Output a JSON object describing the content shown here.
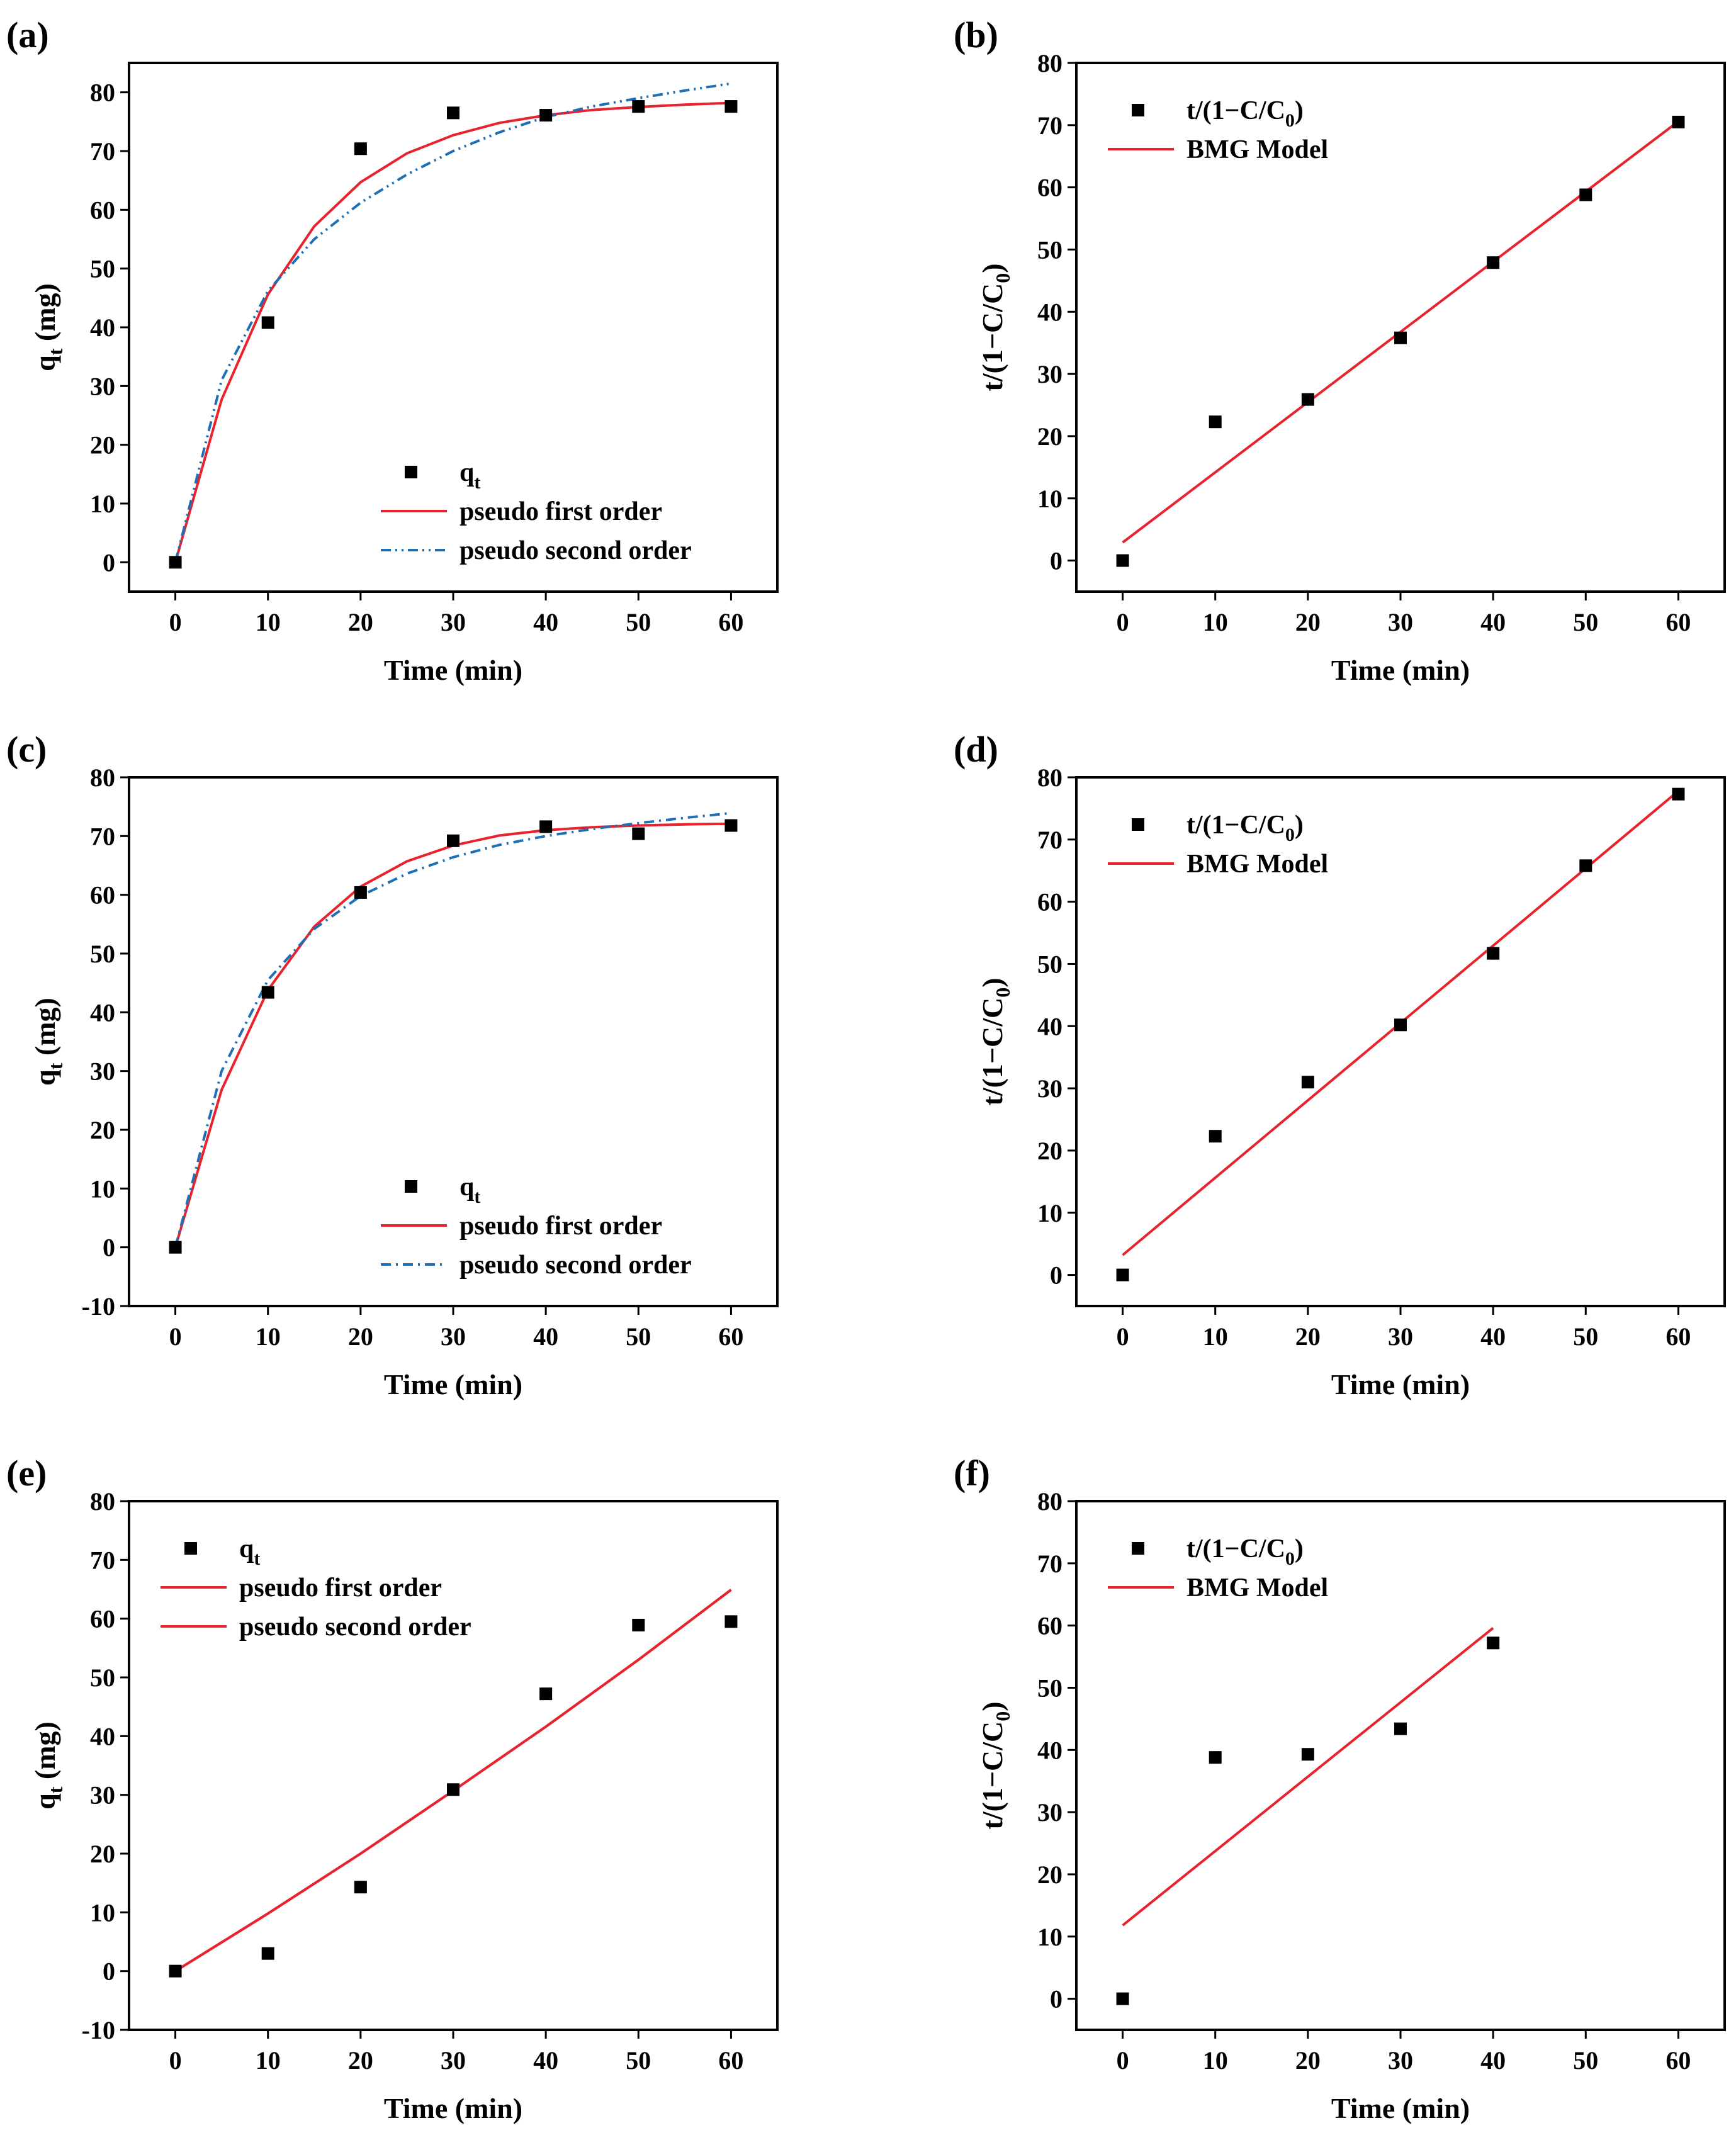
{
  "figure": {
    "colors": {
      "data": "#000000",
      "pfo": "#e8232d",
      "pso": "#1f6fb5",
      "axis": "#000000"
    }
  },
  "chart_data": [
    {
      "id": "a",
      "panel_label": "(a)",
      "type": "scatter",
      "xlabel": "Time (min)",
      "ylabel_main": "q",
      "ylabel_sub": "t",
      "ylabel_tail": " (mg)",
      "xlim": [
        -5,
        65
      ],
      "ylim": [
        -5,
        85
      ],
      "xticks": [
        0,
        10,
        20,
        30,
        40,
        50,
        60
      ],
      "yticks": [
        0,
        10,
        20,
        30,
        40,
        50,
        60,
        70,
        80
      ],
      "legend_position": "bottom-right",
      "series": [
        {
          "name": "qt",
          "label_main": "q",
          "label_sub": "t",
          "kind": "points",
          "x": [
            0,
            10,
            20,
            30,
            40,
            50,
            60
          ],
          "y": [
            0,
            40.8,
            70.4,
            76.5,
            76.1,
            77.6,
            77.6
          ]
        },
        {
          "name": "pseudo first order",
          "label": "pseudo first order",
          "kind": "line",
          "color_key": "pfo",
          "x": [
            0,
            5,
            10,
            15,
            20,
            25,
            30,
            35,
            40,
            45,
            50,
            55,
            60
          ],
          "y": [
            0,
            27.7,
            45.6,
            57.2,
            64.7,
            69.6,
            72.7,
            74.8,
            76.1,
            77.0,
            77.5,
            77.9,
            78.2
          ]
        },
        {
          "name": "pseudo second order",
          "label": "pseudo second order",
          "kind": "line",
          "dash": "dashdotdot",
          "color_key": "pso",
          "x": [
            0,
            5,
            10,
            15,
            20,
            25,
            30,
            35,
            40,
            45,
            50,
            55,
            60
          ],
          "y": [
            0,
            31.0,
            46.2,
            55.0,
            61.2,
            66.0,
            70.0,
            73.2,
            75.8,
            77.6,
            79.0,
            80.3,
            81.5
          ]
        }
      ]
    },
    {
      "id": "b",
      "panel_label": "(b)",
      "type": "scatter",
      "xlabel": "Time (min)",
      "ylabel_main": "t/(1−C/C",
      "ylabel_sub": "0",
      "ylabel_tail": ")",
      "xlim": [
        -5,
        65
      ],
      "ylim": [
        -5,
        80
      ],
      "xticks": [
        0,
        10,
        20,
        30,
        40,
        50,
        60
      ],
      "yticks": [
        0,
        10,
        20,
        30,
        40,
        50,
        60,
        70,
        80
      ],
      "legend_position": "top-left",
      "series": [
        {
          "name": "t/(1-C/C0)",
          "label_main": "t/(1−C/C",
          "label_sub": "0",
          "label_tail": ")",
          "kind": "points",
          "x": [
            0,
            10,
            20,
            30,
            40,
            50,
            60
          ],
          "y": [
            0,
            22.3,
            25.9,
            35.8,
            47.9,
            58.8,
            70.5
          ]
        },
        {
          "name": "BMG Model",
          "label": "BMG Model",
          "kind": "line",
          "color_key": "pfo",
          "x": [
            0,
            60
          ],
          "y": [
            2.9,
            70.6
          ]
        }
      ]
    },
    {
      "id": "c",
      "panel_label": "(c)",
      "type": "scatter",
      "xlabel": "Time (min)",
      "ylabel_main": "q",
      "ylabel_sub": "t",
      "ylabel_tail": " (mg)",
      "xlim": [
        -5,
        65
      ],
      "ylim": [
        -10,
        80
      ],
      "xticks": [
        0,
        10,
        20,
        30,
        40,
        50,
        60
      ],
      "yticks": [
        -10,
        0,
        10,
        20,
        30,
        40,
        50,
        60,
        70,
        80
      ],
      "legend_position": "bottom-right",
      "series": [
        {
          "name": "qt",
          "label_main": "q",
          "label_sub": "t",
          "kind": "points",
          "x": [
            0,
            10,
            20,
            30,
            40,
            50,
            60
          ],
          "y": [
            0,
            43.4,
            60.4,
            69.2,
            71.6,
            70.4,
            71.8
          ]
        },
        {
          "name": "pseudo first order",
          "label": "pseudo first order",
          "kind": "line",
          "color_key": "pfo",
          "x": [
            0,
            5,
            10,
            15,
            20,
            25,
            30,
            35,
            40,
            45,
            50,
            55,
            60
          ],
          "y": [
            0,
            26.8,
            43.8,
            54.6,
            61.4,
            65.7,
            68.4,
            70.1,
            71.0,
            71.5,
            71.8,
            72.0,
            72.1
          ]
        },
        {
          "name": "pseudo second order",
          "label": "pseudo second order",
          "kind": "line",
          "dash": "dashdot",
          "color_key": "pso",
          "x": [
            0,
            5,
            10,
            15,
            20,
            25,
            30,
            35,
            40,
            45,
            50,
            55,
            60
          ],
          "y": [
            0,
            30.0,
            45.5,
            54.2,
            59.8,
            63.6,
            66.4,
            68.5,
            70.0,
            71.2,
            72.2,
            73.1,
            73.9
          ]
        }
      ]
    },
    {
      "id": "d",
      "panel_label": "(d)",
      "type": "scatter",
      "xlabel": "Time (min)",
      "ylabel_main": "t/(1−C/C",
      "ylabel_sub": "0",
      "ylabel_tail": ")",
      "xlim": [
        -5,
        65
      ],
      "ylim": [
        -5,
        80
      ],
      "xticks": [
        0,
        10,
        20,
        30,
        40,
        50,
        60
      ],
      "yticks": [
        0,
        10,
        20,
        30,
        40,
        50,
        60,
        70,
        80
      ],
      "legend_position": "top-left",
      "series": [
        {
          "name": "t/(1-C/C0)",
          "label_main": "t/(1−C/C",
          "label_sub": "0",
          "label_tail": ")",
          "kind": "points",
          "x": [
            0,
            10,
            20,
            30,
            40,
            50,
            60
          ],
          "y": [
            0,
            22.3,
            31.0,
            40.2,
            51.7,
            65.8,
            77.3
          ]
        },
        {
          "name": "BMG Model",
          "label": "BMG Model",
          "kind": "line",
          "color_key": "pfo",
          "x": [
            0,
            60
          ],
          "y": [
            3.2,
            77.8
          ]
        }
      ]
    },
    {
      "id": "e",
      "panel_label": "(e)",
      "type": "scatter",
      "xlabel": "Time (min)",
      "ylabel_main": "q",
      "ylabel_sub": "t",
      "ylabel_tail": " (mg)",
      "xlim": [
        -5,
        65
      ],
      "ylim": [
        -10,
        80
      ],
      "xticks": [
        0,
        10,
        20,
        30,
        40,
        50,
        60
      ],
      "yticks": [
        -10,
        0,
        10,
        20,
        30,
        40,
        50,
        60,
        70,
        80
      ],
      "legend_position": "top-left",
      "series": [
        {
          "name": "qt",
          "label_main": "q",
          "label_sub": "t",
          "kind": "points",
          "x": [
            0,
            10,
            20,
            30,
            40,
            50,
            60
          ],
          "y": [
            0,
            3.0,
            14.3,
            30.9,
            47.2,
            58.9,
            59.5
          ]
        },
        {
          "name": "pseudo first order",
          "label": "pseudo first order",
          "kind": "line",
          "color_key": "pfo",
          "x": [
            0,
            10,
            20,
            30,
            40,
            50,
            60
          ],
          "y": [
            0,
            9.8,
            20.0,
            30.7,
            41.6,
            53.0,
            64.9
          ]
        },
        {
          "name": "pseudo second order",
          "label": "pseudo second order",
          "kind": "line",
          "color_key": "pfo",
          "x": [
            0,
            10,
            20,
            30,
            40,
            50,
            60
          ],
          "y": [
            0,
            9.8,
            20.0,
            30.7,
            41.6,
            53.0,
            64.9
          ]
        }
      ]
    },
    {
      "id": "f",
      "panel_label": "(f)",
      "type": "scatter",
      "xlabel": "Time (min)",
      "ylabel_main": "t/(1−C/C",
      "ylabel_sub": "0",
      "ylabel_tail": ")",
      "xlim": [
        -5,
        65
      ],
      "ylim": [
        -5,
        80
      ],
      "xticks": [
        0,
        10,
        20,
        30,
        40,
        50,
        60
      ],
      "yticks": [
        0,
        10,
        20,
        30,
        40,
        50,
        60,
        70,
        80
      ],
      "legend_position": "top-left",
      "series": [
        {
          "name": "t/(1-C/C0)",
          "label_main": "t/(1−C/C",
          "label_sub": "0",
          "label_tail": ")",
          "kind": "points",
          "x": [
            0,
            10,
            20,
            30,
            40
          ],
          "y": [
            0,
            38.8,
            39.3,
            43.4,
            57.2
          ]
        },
        {
          "name": "BMG Model",
          "label": "BMG Model",
          "kind": "line",
          "color_key": "pfo",
          "x": [
            0,
            40
          ],
          "y": [
            11.8,
            59.6
          ]
        }
      ]
    }
  ]
}
